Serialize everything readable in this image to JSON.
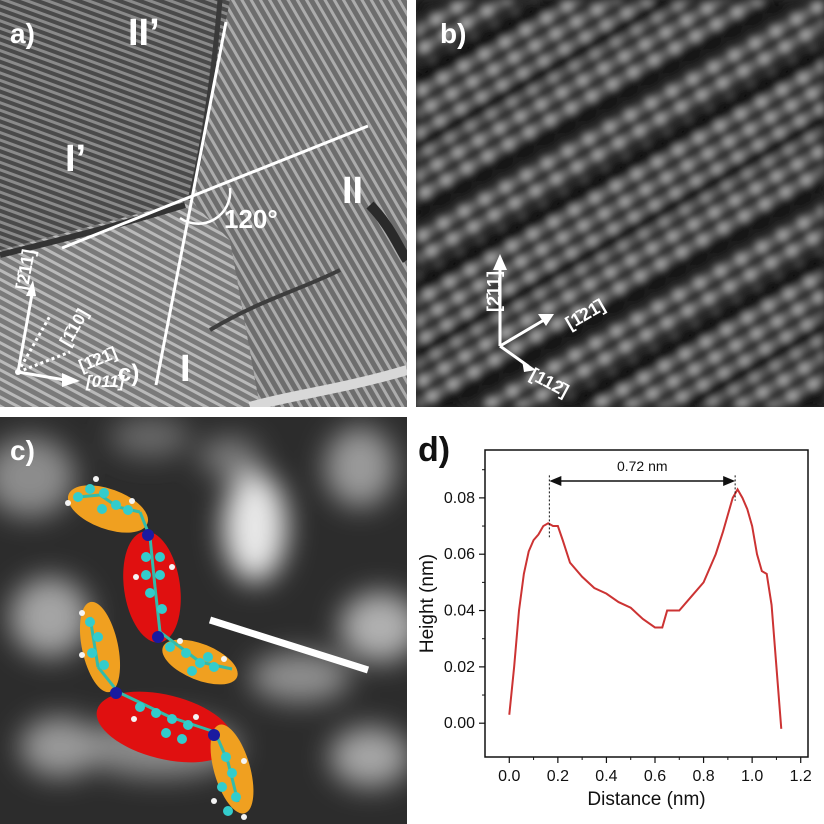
{
  "panels": {
    "a": {
      "label": "a)",
      "domains": [
        "II’",
        "I’",
        "II",
        "I"
      ],
      "angle": "120°",
      "stray_label": "c)",
      "directions": [
        "[2̄11]",
        "[1̄10]",
        "[1̄21̄]",
        "[011̄]"
      ]
    },
    "b": {
      "label": "b)",
      "directions": [
        "[2̄11]",
        "[1̄21̄]",
        "[112̄]"
      ]
    },
    "c": {
      "label": "c)"
    },
    "d": {
      "label": "d)",
      "annotation": "0.72 nm"
    }
  },
  "chart_data": {
    "type": "line",
    "title": "",
    "xlabel": "Distance (nm)",
    "ylabel": "Height (nm)",
    "xlim": [
      -0.1,
      1.23
    ],
    "ylim": [
      -0.012,
      0.097
    ],
    "xticks": [
      "0.0",
      "0.2",
      "0.4",
      "0.6",
      "0.8",
      "1.0",
      "1.2"
    ],
    "yticks": [
      "0.00",
      "0.02",
      "0.04",
      "0.06",
      "0.08"
    ],
    "line_color": "#cc3333",
    "series": [
      {
        "x": [
          0.0,
          0.02,
          0.04,
          0.06,
          0.08,
          0.1,
          0.12,
          0.14,
          0.16,
          0.18,
          0.2,
          0.22,
          0.25,
          0.3,
          0.35,
          0.4,
          0.45,
          0.5,
          0.55,
          0.6,
          0.63,
          0.65,
          0.7,
          0.75,
          0.8,
          0.85,
          0.88,
          0.9,
          0.92,
          0.94,
          0.96,
          0.98,
          1.0,
          1.02,
          1.04,
          1.06,
          1.08,
          1.1,
          1.12
        ],
        "y": [
          0.003,
          0.02,
          0.04,
          0.053,
          0.061,
          0.065,
          0.067,
          0.07,
          0.071,
          0.07,
          0.07,
          0.065,
          0.057,
          0.052,
          0.048,
          0.046,
          0.043,
          0.041,
          0.037,
          0.034,
          0.034,
          0.04,
          0.04,
          0.045,
          0.05,
          0.06,
          0.068,
          0.074,
          0.08,
          0.083,
          0.08,
          0.076,
          0.07,
          0.06,
          0.054,
          0.053,
          0.042,
          0.02,
          -0.002
        ]
      }
    ],
    "markers": {
      "x1": 0.165,
      "x2": 0.93
    }
  }
}
